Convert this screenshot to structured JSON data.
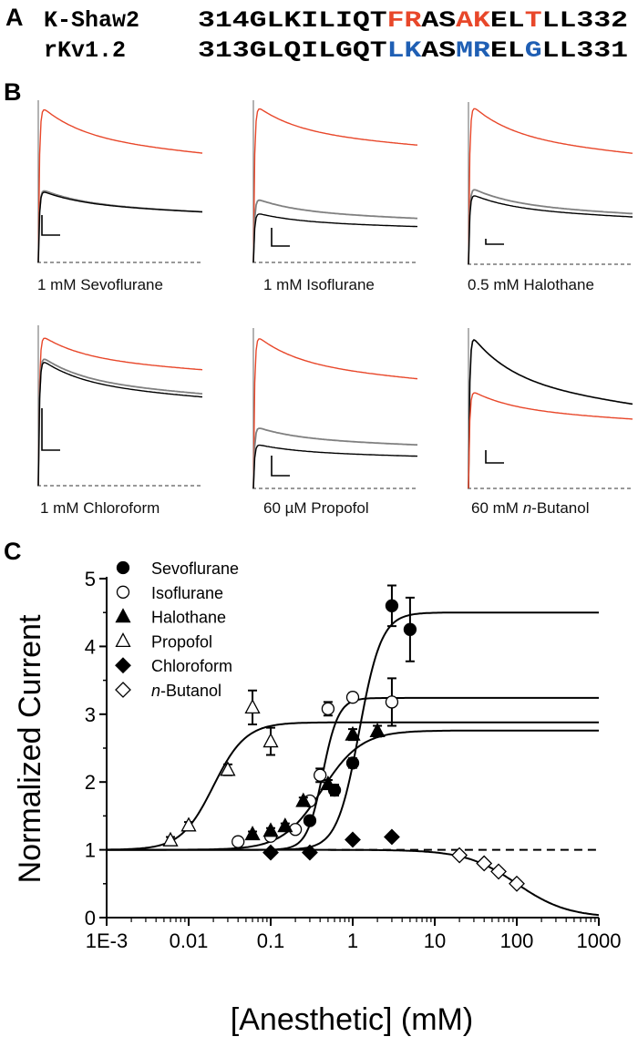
{
  "panel_a": {
    "letter": "A",
    "rows": [
      {
        "name": "K-Shaw2",
        "segments": [
          {
            "text": "314GLKILIQT",
            "color": "#000000"
          },
          {
            "text": "FR",
            "color": "#e8472a"
          },
          {
            "text": "AS",
            "color": "#000000"
          },
          {
            "text": "AK",
            "color": "#e8472a"
          },
          {
            "text": "EL",
            "color": "#000000"
          },
          {
            "text": "T",
            "color": "#e8472a"
          },
          {
            "text": "LL332",
            "color": "#000000"
          }
        ]
      },
      {
        "name": "rKv1.2",
        "segments": [
          {
            "text": "313GLQILGQT",
            "color": "#000000"
          },
          {
            "text": "LK",
            "color": "#1f5fb4"
          },
          {
            "text": "AS",
            "color": "#000000"
          },
          {
            "text": "MR",
            "color": "#1f5fb4"
          },
          {
            "text": "EL",
            "color": "#000000"
          },
          {
            "text": "G",
            "color": "#1f5fb4"
          },
          {
            "text": "LL331",
            "color": "#000000"
          }
        ]
      }
    ]
  },
  "panel_b": {
    "letter": "B",
    "trace_colors": {
      "red": "#e8472a",
      "gray": "#808080",
      "black": "#000000"
    },
    "panels": [
      {
        "label": "1 mM Sevoflurane"
      },
      {
        "label": "1 mM Isoflurane"
      },
      {
        "label": "0.5 mM Halothane"
      },
      {
        "label": "1 mM Chloroform"
      },
      {
        "label": "60 µM Propofol"
      },
      {
        "label_pre": "60 mM ",
        "label_italic": "n",
        "label_post": "-Butanol"
      }
    ]
  },
  "chart_data": {
    "letter": "C",
    "type": "scatter",
    "xlabel": "[Anesthetic] (mM)",
    "ylabel": "Normalized Current",
    "xscale": "log",
    "xlim": [
      0.001,
      1000
    ],
    "ylim": [
      0,
      5
    ],
    "xticks": [
      "1E-3",
      "0.01",
      "0.1",
      "1",
      "10",
      "100",
      "1000"
    ],
    "yticks": [
      "0",
      "1",
      "2",
      "3",
      "4",
      "5"
    ],
    "grid": false,
    "legend_position": "top-left",
    "reference_line": {
      "y": 1,
      "style": "dashed"
    },
    "series": [
      {
        "name": "Sevoflurane",
        "marker": "circle",
        "filled": true,
        "points": [
          [
            0.3,
            1.43,
            0.05
          ],
          [
            0.6,
            1.88,
            0.08
          ],
          [
            1,
            2.28,
            0.07
          ],
          [
            3,
            4.6,
            0.3
          ],
          [
            5,
            4.25,
            0.47
          ]
        ],
        "fit": {
          "bottom": 1,
          "top": 4.5,
          "ec50": 1.2,
          "hill": 3.2
        }
      },
      {
        "name": "Isoflurane",
        "marker": "circle",
        "filled": false,
        "points": [
          [
            0.04,
            1.12,
            0.04
          ],
          [
            0.1,
            1.2,
            0.05
          ],
          [
            0.2,
            1.3,
            0.05
          ],
          [
            0.3,
            1.72,
            0.05
          ],
          [
            0.4,
            2.1,
            0.1
          ],
          [
            0.5,
            3.08,
            0.1
          ],
          [
            1,
            3.25,
            0.06
          ],
          [
            3,
            3.18,
            0.35
          ]
        ],
        "fit": {
          "bottom": 1,
          "top": 3.24,
          "ec50": 0.43,
          "hill": 4.5
        }
      },
      {
        "name": "Halothane",
        "marker": "triangle",
        "filled": true,
        "points": [
          [
            0.06,
            1.23,
            0.04
          ],
          [
            0.1,
            1.28,
            0.04
          ],
          [
            0.15,
            1.35,
            0.04
          ],
          [
            0.25,
            1.72,
            0.05
          ],
          [
            0.5,
            1.97,
            0.06
          ],
          [
            1,
            2.7,
            0.08
          ],
          [
            2,
            2.75,
            0.08
          ]
        ],
        "fit": {
          "bottom": 1,
          "top": 2.76,
          "ec50": 0.42,
          "hill": 1.8
        }
      },
      {
        "name": "Propofol",
        "marker": "triangle",
        "filled": false,
        "points": [
          [
            0.006,
            1.14,
            0.05
          ],
          [
            0.01,
            1.36,
            0.05
          ],
          [
            0.03,
            2.18,
            0.08
          ],
          [
            0.06,
            3.1,
            0.25
          ],
          [
            0.1,
            2.6,
            0.2
          ]
        ],
        "fit": {
          "bottom": 1,
          "top": 2.88,
          "ec50": 0.02,
          "hill": 2.2
        }
      },
      {
        "name": "Chloroform",
        "marker": "diamond",
        "filled": true,
        "points": [
          [
            0.1,
            0.96,
            0.03
          ],
          [
            0.3,
            0.96,
            0.03
          ],
          [
            1,
            1.15,
            0.03
          ],
          [
            3,
            1.19,
            0.03
          ]
        ]
      },
      {
        "name_italic": "n",
        "name": "-Butanol",
        "marker": "diamond",
        "filled": false,
        "points": [
          [
            20,
            0.92,
            0.04
          ],
          [
            40,
            0.8,
            0.04
          ],
          [
            60,
            0.68,
            0.04
          ],
          [
            100,
            0.5,
            0.04
          ]
        ],
        "fit": {
          "bottom": 1,
          "top": 0,
          "ec50": 100,
          "hill": 1.4
        }
      }
    ]
  }
}
